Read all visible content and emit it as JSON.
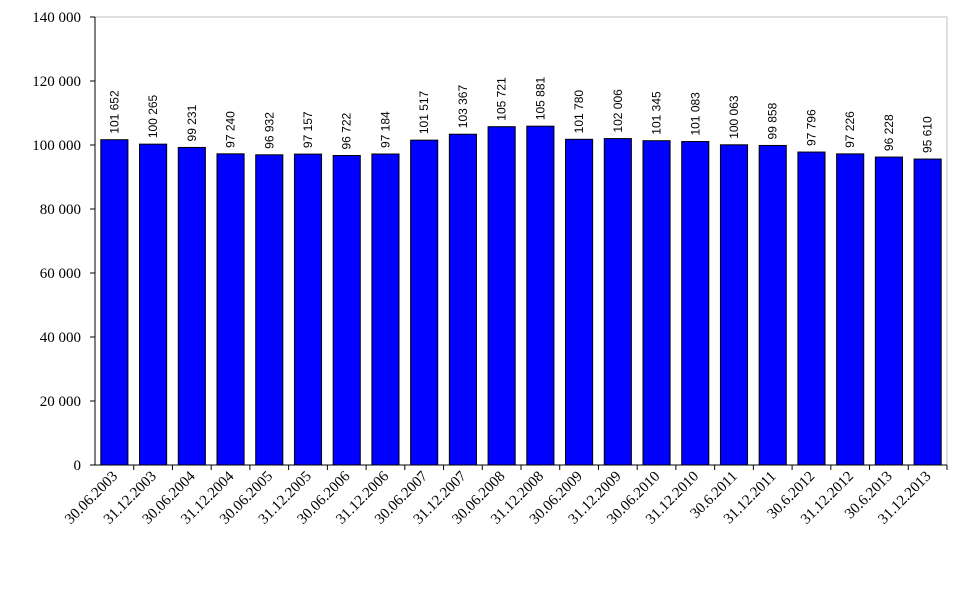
{
  "chart_data": {
    "type": "bar",
    "categories": [
      "30.06.2003",
      "31.12.2003",
      "30.06.2004",
      "31.12.2004",
      "30.06.2005",
      "31.12.2005",
      "30.06.2006",
      "31.12.2006",
      "30.06.2007",
      "31.12.2007",
      "30.06.2008",
      "31.12.2008",
      "30.06.2009",
      "31.12.2009",
      "30.06.2010",
      "31.12.2010",
      "30.6.2011",
      "31.12.2011",
      "30.6.2012",
      "31.12.2012",
      "30.6.2013",
      "31.12.2013"
    ],
    "values": [
      101652,
      100265,
      99231,
      97240,
      96932,
      97157,
      96722,
      97184,
      101517,
      103367,
      105721,
      105881,
      101780,
      102006,
      101345,
      101083,
      100063,
      99858,
      97796,
      97226,
      96228,
      95610
    ],
    "value_labels": [
      "101 652",
      "100 265",
      "99 231",
      "97 240",
      "96 932",
      "97 157",
      "96 722",
      "97 184",
      "101 517",
      "103 367",
      "105 721",
      "105 881",
      "101 780",
      "102 006",
      "101 345",
      "101 083",
      "100 063",
      "99 858",
      "97 796",
      "97 226",
      "96 228",
      "95 610"
    ],
    "color": "#0000ff",
    "ylim": [
      0,
      140000
    ],
    "yticks": [
      0,
      {
        "value": 20000,
        "label": "20 000"
      },
      {
        "value": 40000,
        "label": "40 000"
      },
      {
        "value": 60000,
        "label": "60 000"
      },
      {
        "value": 80000,
        "label": "80 000"
      },
      {
        "value": 100000,
        "label": "100 000"
      },
      {
        "value": 120000,
        "label": "120 000"
      },
      {
        "value": 140000,
        "label": "140 000"
      }
    ],
    "grid": false
  }
}
